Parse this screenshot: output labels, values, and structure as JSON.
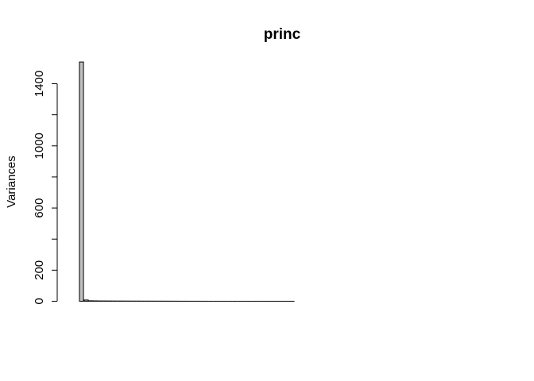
{
  "chart_data": {
    "type": "bar",
    "title": "princ",
    "xlabel": "",
    "ylabel": "Variances",
    "ylim": [
      0,
      1550
    ],
    "yticks": [
      0,
      200,
      600,
      1000,
      1400
    ],
    "ytick_labels": [
      "0",
      "200",
      "600",
      "1000",
      "1400"
    ],
    "yticks_minor": [
      400,
      800,
      1200
    ],
    "grid": false,
    "legend": "none",
    "colors": {
      "bar_fill": "#bebebe",
      "bar_stroke": "#000000",
      "axis": "#000000"
    },
    "values": [
      1540,
      8,
      3,
      2.5,
      2,
      2,
      1.8,
      1.6,
      1.5,
      1.4,
      1.3,
      1.2,
      1.1,
      1.0,
      1.0,
      0.9,
      0.8,
      0.8,
      0.7,
      0.6,
      0.5,
      0.4,
      0.4,
      0.3,
      0.3,
      0.2,
      0.2,
      0.1,
      0.1,
      0.1,
      0.05,
      0.05,
      0.05,
      0.05,
      0.05,
      0.05,
      0.04,
      0.04,
      0.04,
      0.04,
      0.03,
      0.03,
      0.03,
      0.03,
      0.03,
      0.02,
      0.02,
      0.02,
      0.02,
      0.02,
      0.02,
      0.02,
      0.02,
      0.01,
      0.01,
      0.01,
      0.01,
      0.01,
      0.01,
      0.01,
      0.01,
      0.01,
      0.01,
      0.01,
      0.01,
      0.01,
      0.01,
      0.01,
      0.01,
      0.01,
      0.01,
      0.01,
      0.01,
      0.01,
      0.01,
      0.01,
      0.01,
      0.01,
      0.01,
      0.01,
      0.01,
      0.01,
      0.01,
      0.01,
      0.01
    ]
  }
}
